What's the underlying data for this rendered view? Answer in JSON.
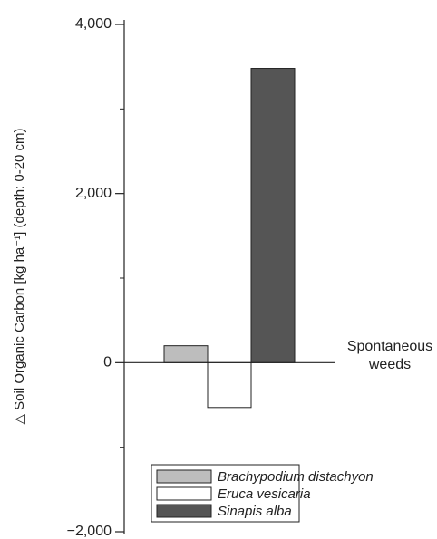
{
  "chart_data": {
    "type": "bar",
    "y_label": "△ Soil Organic Carbon [kg ha⁻¹] (depth: 0-20 cm)",
    "categories": [
      "Spontaneous weeds"
    ],
    "series": [
      {
        "name": "Brachypodium distachyon",
        "color": "#bdbdbd",
        "values": [
          200
        ]
      },
      {
        "name": "Eruca vesicaria",
        "color": "#ffffff",
        "values": [
          -530
        ]
      },
      {
        "name": "Sinapis alba",
        "color": "#555555",
        "values": [
          3480
        ]
      }
    ],
    "ylim": [
      -2000,
      4000
    ],
    "yticks": [
      {
        "value": -2000,
        "label": "−2,000"
      },
      0,
      {
        "value": 2000,
        "label": "2,000"
      },
      {
        "value": 4000,
        "label": "4,000"
      }
    ],
    "yminorticks": [
      -1000,
      1000,
      3000
    ],
    "legend": "bottom"
  }
}
